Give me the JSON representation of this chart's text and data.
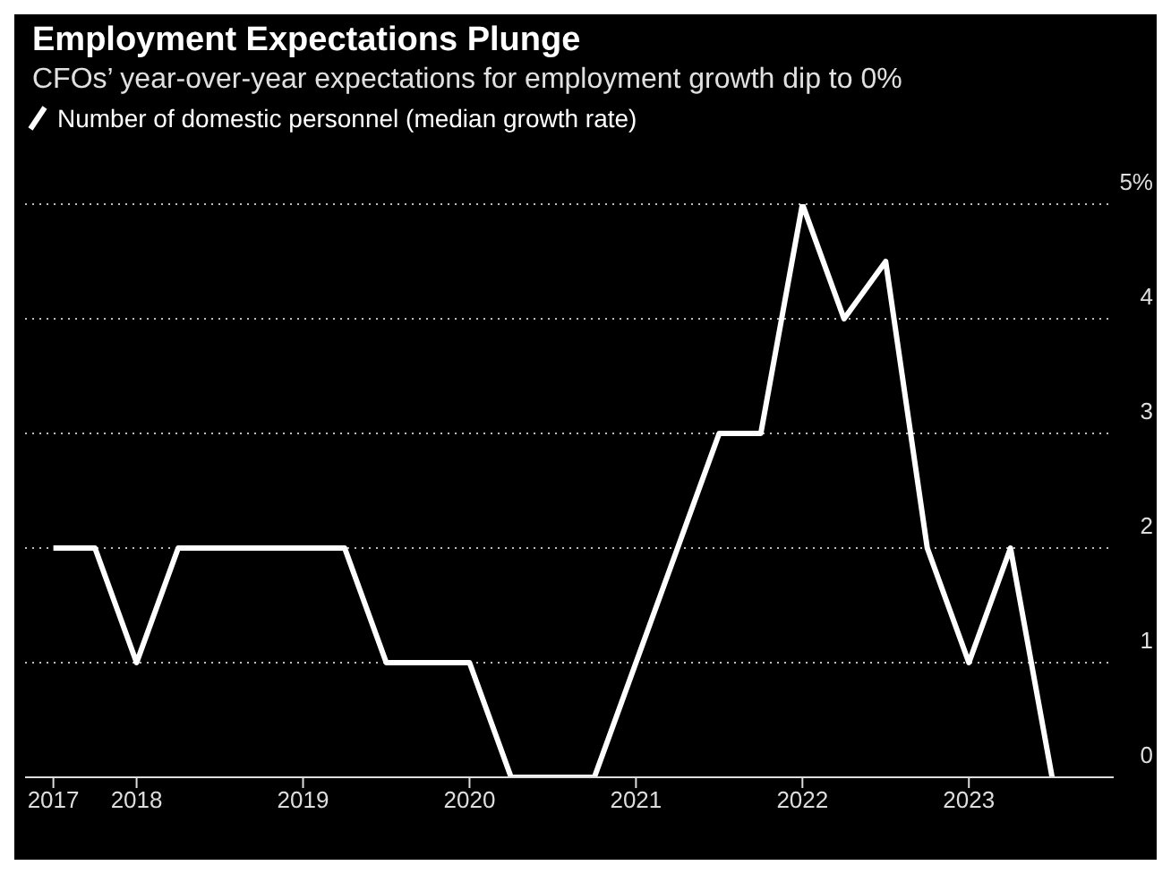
{
  "chart_data": {
    "type": "line",
    "title": "Employment Expectations Plunge",
    "subtitle": "CFOs’ year-over-year expectations for employment growth dip to 0%",
    "x": [
      2017.5,
      2017.75,
      2018,
      2018.25,
      2018.5,
      2018.75,
      2019,
      2019.25,
      2019.5,
      2019.75,
      2020,
      2020.25,
      2020.5,
      2020.75,
      2021,
      2021.25,
      2021.5,
      2021.75,
      2022,
      2022.25,
      2022.5,
      2022.75,
      2023,
      2023.25,
      2023.5
    ],
    "series": [
      {
        "name": "Number of domestic personnel (median growth rate)",
        "color": "#ffffff",
        "values": [
          2,
          2,
          1,
          2,
          2,
          2,
          2,
          2,
          1,
          1,
          1,
          0,
          0,
          0,
          1,
          2,
          3,
          3,
          5,
          4,
          4.5,
          2,
          1,
          2,
          0
        ]
      }
    ],
    "xlim": [
      2017.33,
      2023.87
    ],
    "xticks": [
      {
        "value": 2017.5,
        "label": "2017"
      },
      2018,
      2019,
      2020,
      2021,
      2022,
      2023
    ],
    "ylim": [
      0,
      5
    ],
    "yticks": [
      0,
      1,
      2,
      3,
      4,
      {
        "value": 5,
        "label": "5%"
      }
    ],
    "grid": "y",
    "legend": "top left",
    "marker": "none",
    "line_style": "solid"
  }
}
